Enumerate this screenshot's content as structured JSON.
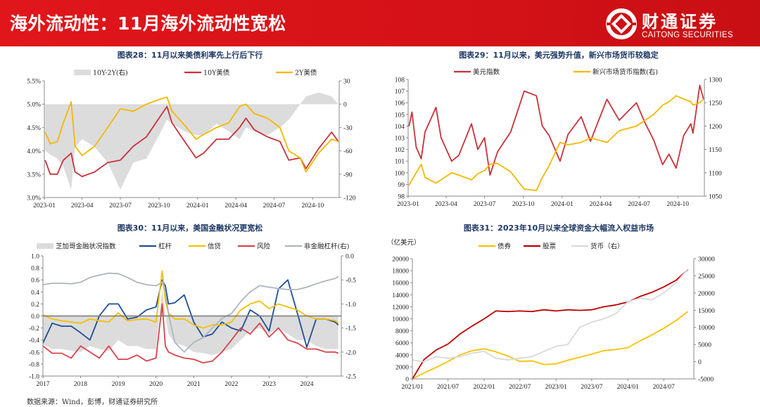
{
  "header": {
    "title": "海外流动性：11月海外流动性宽松",
    "logo_cn": "财通证券",
    "logo_en": "CAITONG SECURITIES"
  },
  "source": "数据来源：Wind，彭博，财通证券研究所",
  "colors": {
    "brand_red": "#d41217",
    "title_navy": "#1f3864"
  },
  "chart_data": [
    {
      "type": "line",
      "title": "图表28：11月以来美债利率先上行后下行",
      "xlim": [
        "2023-01-01",
        "2024-12-03"
      ],
      "xticks": [
        [
          "2023-01-01",
          "2023-01"
        ],
        [
          "2023-04-01",
          "2023-04"
        ],
        [
          "2023-07-01",
          "2023-07"
        ],
        [
          "2023-10-01",
          "2023-10"
        ],
        [
          "2024-01-01",
          "2024-01"
        ],
        [
          "2024-04-01",
          "2024-04"
        ],
        [
          "2024-07-01",
          "2024-07"
        ],
        [
          "2024-10-01",
          "2024-10"
        ]
      ],
      "left_axis": {
        "range": [
          3.0,
          5.5
        ],
        "ticks": [
          3.0,
          3.5,
          4.0,
          4.5,
          5.0,
          5.5
        ],
        "labels": [
          "3.0%",
          "3.5%",
          "4.0%",
          "4.5%",
          "5.0%",
          "5.5%"
        ]
      },
      "right_axis": {
        "range": [
          -120,
          30
        ],
        "ticks": [
          -120,
          -90,
          -60,
          -30,
          0,
          30
        ],
        "labels": [
          "-120",
          "-90",
          "-60",
          "-30",
          "0",
          "30"
        ]
      },
      "x": [
        "2023-01-03",
        "2023-01-15",
        "2023-02-01",
        "2023-02-15",
        "2023-03-06",
        "2023-03-15",
        "2023-04-01",
        "2023-05-01",
        "2023-06-01",
        "2023-07-01",
        "2023-08-01",
        "2023-09-01",
        "2023-10-01",
        "2023-10-20",
        "2023-11-01",
        "2023-12-01",
        "2023-12-28",
        "2024-01-15",
        "2024-02-15",
        "2024-03-15",
        "2024-04-10",
        "2024-04-25",
        "2024-05-15",
        "2024-06-15",
        "2024-07-15",
        "2024-08-05",
        "2024-09-01",
        "2024-09-15",
        "2024-10-15",
        "2024-11-15",
        "2024-12-01"
      ],
      "series": [
        {
          "name": "10Y-2Y(右)",
          "kind": "area",
          "axis": "right",
          "color": "#dcdcdc",
          "values": [
            -60,
            -65,
            -70,
            -80,
            -110,
            -55,
            -45,
            -55,
            -75,
            -110,
            -75,
            -70,
            -40,
            -20,
            -25,
            -35,
            -40,
            -40,
            -25,
            -35,
            -45,
            -30,
            -35,
            -40,
            -30,
            -20,
            0,
            10,
            15,
            10,
            0
          ]
        },
        {
          "name": "10Y美债",
          "kind": "line",
          "axis": "left",
          "color": "#c8323a",
          "values": [
            3.8,
            3.5,
            3.5,
            3.8,
            3.95,
            3.55,
            3.45,
            3.55,
            3.75,
            3.8,
            4.1,
            4.3,
            4.7,
            4.95,
            4.6,
            4.2,
            3.85,
            3.95,
            4.25,
            4.25,
            4.5,
            4.7,
            4.45,
            4.3,
            4.2,
            3.8,
            3.85,
            3.62,
            4.05,
            4.4,
            4.2
          ]
        },
        {
          "name": "2Y美债",
          "kind": "line",
          "axis": "left",
          "color": "#f5b800",
          "values": [
            4.4,
            4.15,
            4.2,
            4.6,
            5.05,
            4.1,
            3.9,
            4.1,
            4.5,
            4.9,
            4.85,
            5.0,
            5.1,
            5.15,
            4.85,
            4.55,
            4.25,
            4.35,
            4.5,
            4.6,
            4.95,
            5.0,
            4.8,
            4.7,
            4.5,
            4.0,
            3.85,
            3.55,
            3.95,
            4.25,
            4.2
          ]
        }
      ]
    },
    {
      "type": "line",
      "title": "图表29：11月以来，美元强势升值，新兴市场货币较稳定",
      "xlim": [
        "2023-01-01",
        "2024-12-03"
      ],
      "xticks": [
        [
          "2023-01-01",
          "2023-01"
        ],
        [
          "2023-04-01",
          "2023-04"
        ],
        [
          "2023-07-01",
          "2023-07"
        ],
        [
          "2023-10-01",
          "2023-10"
        ],
        [
          "2024-01-01",
          "2024-01"
        ],
        [
          "2024-04-01",
          "2024-04"
        ],
        [
          "2024-07-01",
          "2024-07"
        ],
        [
          "2024-10-01",
          "2024-10"
        ]
      ],
      "left_axis": {
        "range": [
          98,
          108
        ],
        "ticks": [
          98,
          99,
          100,
          101,
          102,
          103,
          104,
          105,
          106,
          107,
          108
        ],
        "labels": [
          "98",
          "99",
          "100",
          "101",
          "102",
          "103",
          "104",
          "105",
          "106",
          "107",
          "108"
        ]
      },
      "right_axis": {
        "range": [
          1050,
          1300
        ],
        "ticks": [
          1050,
          1100,
          1150,
          1200,
          1250,
          1300
        ],
        "labels": [
          "1050",
          "1100",
          "1150",
          "1200",
          "1250",
          "1300"
        ]
      },
      "x": [
        "2023-01-03",
        "2023-01-10",
        "2023-01-20",
        "2023-02-01",
        "2023-02-10",
        "2023-03-08",
        "2023-03-20",
        "2023-04-14",
        "2023-05-01",
        "2023-05-31",
        "2023-06-15",
        "2023-07-01",
        "2023-07-14",
        "2023-08-01",
        "2023-09-01",
        "2023-10-03",
        "2023-11-01",
        "2023-11-15",
        "2023-12-01",
        "2023-12-27",
        "2024-01-15",
        "2024-02-15",
        "2024-03-08",
        "2024-04-16",
        "2024-05-15",
        "2024-06-25",
        "2024-07-15",
        "2024-08-05",
        "2024-08-26",
        "2024-09-10",
        "2024-09-27",
        "2024-10-15",
        "2024-11-01",
        "2024-11-06",
        "2024-11-22",
        "2024-12-01"
      ],
      "series": [
        {
          "name": "美元指数",
          "kind": "line",
          "axis": "left",
          "color": "#c8323a",
          "values": [
            104,
            105.2,
            102.2,
            101.2,
            103.5,
            105.6,
            103,
            101,
            101.5,
            104.2,
            102,
            103,
            99.8,
            101.8,
            103.5,
            107,
            106.6,
            104,
            103.2,
            101,
            103.3,
            104.8,
            102.7,
            106.3,
            104.5,
            106,
            104.3,
            102.8,
            100.7,
            101.6,
            100.4,
            103.2,
            104.2,
            103.4,
            107.5,
            106.3
          ]
        },
        {
          "name": "新兴市场货币指数(右)",
          "kind": "line",
          "axis": "right",
          "color": "#f5b800",
          "values": [
            1073,
            1085,
            1100,
            1118,
            1090,
            1078,
            1085,
            1100,
            1095,
            1085,
            1098,
            1105,
            1118,
            1120,
            1102,
            1065,
            1062,
            1090,
            1115,
            1165,
            1160,
            1165,
            1175,
            1165,
            1190,
            1200,
            1212,
            1225,
            1245,
            1252,
            1265,
            1258,
            1252,
            1245,
            1250,
            1258
          ]
        }
      ]
    },
    {
      "type": "line",
      "title": "图表30：11月以来，美国金融状况更宽松",
      "xlim": [
        "2017-01-01",
        "2024-11-30"
      ],
      "xticks": [
        [
          "2017-01-01",
          "2017"
        ],
        [
          "2018-01-01",
          "2018"
        ],
        [
          "2019-01-01",
          "2019"
        ],
        [
          "2020-01-01",
          "2020"
        ],
        [
          "2021-01-01",
          "2021"
        ],
        [
          "2022-01-01",
          "2022"
        ],
        [
          "2023-01-01",
          "2023"
        ],
        [
          "2024-01-01",
          "2024"
        ]
      ],
      "left_axis": {
        "range": [
          -1.0,
          1.0
        ],
        "ticks": [
          -1.0,
          -0.8,
          -0.6,
          -0.4,
          -0.2,
          0.0,
          0.2,
          0.4,
          0.6,
          0.8,
          1.0
        ],
        "labels": [
          "-1.0",
          "-0.8",
          "-0.6",
          "-0.4",
          "-0.2",
          "0.0",
          "0.2",
          "0.4",
          "0.6",
          "0.8",
          "1.0"
        ]
      },
      "right_axis": {
        "range": [
          -2.5,
          0.0
        ],
        "ticks": [
          -2.5,
          -2.0,
          -1.5,
          -1.0,
          -0.5,
          0.0
        ],
        "labels": [
          "-2.5",
          "-2.0",
          "-1.5",
          "-1.0",
          "-0.5",
          "0.0"
        ]
      },
      "zero_line": true,
      "x": [
        "2017-01",
        "2017-04",
        "2017-07",
        "2017-10",
        "2018-01",
        "2018-04",
        "2018-07",
        "2018-10",
        "2019-01",
        "2019-04",
        "2019-07",
        "2019-10",
        "2020-01",
        "2020-03",
        "2020-04",
        "2020-05",
        "2020-07",
        "2020-10",
        "2021-01",
        "2021-04",
        "2021-07",
        "2021-10",
        "2022-01",
        "2022-04",
        "2022-07",
        "2022-10",
        "2023-01",
        "2023-04",
        "2023-07",
        "2023-10",
        "2024-01",
        "2024-04",
        "2024-07",
        "2024-10",
        "2024-11"
      ],
      "series": [
        {
          "name": "芝加哥金融状况指数",
          "kind": "area",
          "axis": "left",
          "color": "#dcdcdc",
          "values": [
            -0.47,
            -0.55,
            -0.55,
            -0.58,
            -0.6,
            -0.5,
            -0.55,
            -0.58,
            -0.4,
            -0.5,
            -0.5,
            -0.55,
            -0.55,
            0.45,
            0.0,
            -0.3,
            -0.45,
            -0.5,
            -0.6,
            -0.62,
            -0.65,
            -0.6,
            -0.55,
            -0.4,
            -0.25,
            -0.2,
            -0.3,
            -0.2,
            -0.3,
            -0.4,
            -0.4,
            -0.5,
            -0.55,
            -0.55,
            -0.55
          ]
        },
        {
          "name": "杠杆",
          "kind": "line",
          "axis": "left",
          "color": "#1f4e96",
          "values": [
            -0.45,
            -0.12,
            -0.17,
            -0.17,
            -0.28,
            -0.4,
            0.0,
            0.2,
            0.2,
            -0.05,
            -0.02,
            0.1,
            0.15,
            0.6,
            0.5,
            0.2,
            0.22,
            0.35,
            -0.1,
            -0.35,
            -0.3,
            -0.1,
            -0.2,
            -0.25,
            0.1,
            0.0,
            -0.25,
            0.45,
            0.6,
            0.05,
            -0.52,
            -0.05,
            -0.05,
            -0.1,
            -0.15
          ]
        },
        {
          "name": "信贷",
          "kind": "line",
          "axis": "left",
          "color": "#f5c000",
          "values": [
            0.02,
            -0.05,
            -0.08,
            -0.1,
            -0.12,
            -0.05,
            -0.08,
            -0.1,
            0.05,
            -0.08,
            -0.06,
            -0.05,
            -0.1,
            0.75,
            0.25,
            0.05,
            -0.05,
            -0.05,
            -0.15,
            -0.2,
            -0.15,
            -0.15,
            -0.1,
            0.1,
            0.2,
            0.25,
            0.12,
            0.2,
            0.15,
            0.1,
            0.0,
            -0.05,
            -0.05,
            -0.08,
            -0.12
          ]
        },
        {
          "name": "风险",
          "kind": "line",
          "axis": "left",
          "color": "#d9434b",
          "values": [
            -0.5,
            -0.62,
            -0.62,
            -0.7,
            -0.5,
            -0.6,
            -0.7,
            -0.5,
            -0.72,
            -0.72,
            -0.65,
            -0.75,
            -0.7,
            0.2,
            -0.5,
            -0.6,
            -0.65,
            -0.7,
            -0.72,
            -0.78,
            -0.75,
            -0.6,
            -0.4,
            -0.2,
            -0.3,
            -0.12,
            -0.35,
            -0.2,
            -0.4,
            -0.45,
            -0.55,
            -0.55,
            -0.6,
            -0.6,
            -0.62
          ]
        },
        {
          "name": "非金融杠杆(右)",
          "kind": "line",
          "axis": "right",
          "color": "#b0b4bf",
          "values": [
            -0.6,
            -0.57,
            -0.57,
            -0.58,
            -0.55,
            -0.45,
            -0.4,
            -0.36,
            -0.37,
            -0.45,
            -0.55,
            -0.6,
            -0.62,
            -0.55,
            -0.75,
            -1.2,
            -1.8,
            -2.0,
            -1.8,
            -1.7,
            -1.5,
            -1.3,
            -1.2,
            -0.95,
            -0.75,
            -0.62,
            -0.65,
            -0.68,
            -0.7,
            -0.7,
            -0.65,
            -0.58,
            -0.52,
            -0.47,
            -0.43
          ]
        }
      ]
    },
    {
      "type": "line",
      "title": "图表31：2023年10月以来全球资金大幅流入权益市场",
      "unit": "（亿美元）",
      "xlim": [
        "2021-01-01",
        "2024-12-01"
      ],
      "xticks": [
        [
          "2021-01-01",
          "2021/01"
        ],
        [
          "2021-07-01",
          "2021/07"
        ],
        [
          "2022-01-01",
          "2022/01"
        ],
        [
          "2022-07-01",
          "2022/07"
        ],
        [
          "2023-01-01",
          "2023/01"
        ],
        [
          "2023-07-01",
          "2023/07"
        ],
        [
          "2024-01-01",
          "2024/01"
        ],
        [
          "2024-07-01",
          "2024/07"
        ]
      ],
      "left_axis": {
        "range": [
          0,
          20000
        ],
        "ticks": [
          0,
          2000,
          4000,
          6000,
          8000,
          10000,
          12000,
          14000,
          16000,
          18000,
          20000
        ],
        "labels": [
          "0",
          "2000",
          "4000",
          "6000",
          "8000",
          "10000",
          "12000",
          "14000",
          "16000",
          "18000",
          "20000"
        ]
      },
      "right_axis": {
        "range": [
          -5000,
          30000
        ],
        "ticks": [
          -5000,
          0,
          5000,
          10000,
          15000,
          20000,
          25000,
          30000
        ],
        "labels": [
          "-5000",
          "0",
          "5000",
          "10000",
          "15000",
          "20000",
          "25000",
          "30000"
        ]
      },
      "x": [
        "2021-01",
        "2021-03",
        "2021-05",
        "2021-07",
        "2021-09",
        "2021-11",
        "2022-01",
        "2022-03",
        "2022-05",
        "2022-07",
        "2022-09",
        "2022-11",
        "2023-01",
        "2023-03",
        "2023-05",
        "2023-07",
        "2023-09",
        "2023-11",
        "2024-01",
        "2024-03",
        "2024-05",
        "2024-07",
        "2024-09",
        "2024-11"
      ],
      "series": [
        {
          "name": "债券",
          "kind": "line",
          "axis": "left",
          "color": "#ffc000",
          "values": [
            0,
            1000,
            1900,
            2900,
            4000,
            4700,
            5000,
            4500,
            3800,
            2900,
            3000,
            2400,
            2500,
            3100,
            3600,
            4100,
            4700,
            4900,
            5200,
            6300,
            7300,
            8400,
            9700,
            11200
          ]
        },
        {
          "name": "股票",
          "kind": "line",
          "axis": "left",
          "color": "#c00000",
          "values": [
            0,
            3200,
            4800,
            5800,
            7500,
            8800,
            10000,
            11300,
            11200,
            11300,
            11200,
            11500,
            11300,
            11500,
            11400,
            11500,
            12000,
            12300,
            12800,
            13700,
            14400,
            15300,
            16400,
            18200
          ]
        },
        {
          "name": "货币（右）",
          "kind": "line",
          "axis": "right",
          "color": "#d9d9d9",
          "values": [
            500,
            0,
            1500,
            1000,
            1500,
            2500,
            3000,
            1000,
            500,
            1000,
            1500,
            3000,
            4500,
            5000,
            10000,
            11500,
            12500,
            14000,
            17500,
            18500,
            18000,
            20000,
            23000,
            27000
          ]
        }
      ]
    }
  ]
}
